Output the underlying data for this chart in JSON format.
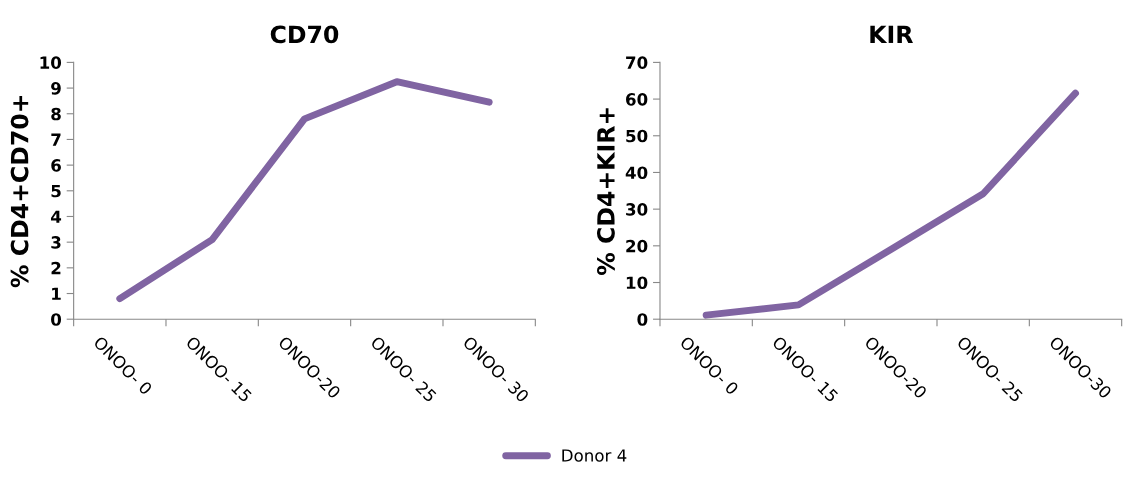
{
  "chart_data": [
    {
      "type": "line",
      "title": "CD70",
      "ylabel": "% CD4+CD70+",
      "categories": [
        "ONOO- 0",
        "ONOO- 15",
        "ONOO-20",
        "ONOO- 25",
        "ONOO- 30"
      ],
      "series": [
        {
          "name": "Donor 4",
          "color": "#8064a2",
          "values": [
            0.8,
            3.1,
            7.8,
            9.25,
            8.45
          ]
        }
      ],
      "ylim": [
        0,
        10
      ],
      "yticks": [
        0,
        1,
        2,
        3,
        4,
        5,
        6,
        7,
        8,
        9,
        10
      ],
      "grid": false,
      "legend": "bottom",
      "marker": "none",
      "line_style": "solid"
    },
    {
      "type": "line",
      "title": "KIR",
      "ylabel": "% CD4+KIR+",
      "categories": [
        "ONOO- 0",
        "ONOO- 15",
        "ONOO-20",
        "ONOO- 25",
        "ONOO-30"
      ],
      "series": [
        {
          "name": "Donor 4",
          "color": "#8064a2",
          "values": [
            1.1,
            3.9,
            19,
            34.2,
            61.6
          ]
        }
      ],
      "ylim": [
        0,
        70
      ],
      "yticks": [
        0,
        10,
        20,
        30,
        40,
        50,
        60,
        70
      ],
      "grid": false,
      "legend": "bottom",
      "marker": "none",
      "line_style": "solid"
    }
  ]
}
